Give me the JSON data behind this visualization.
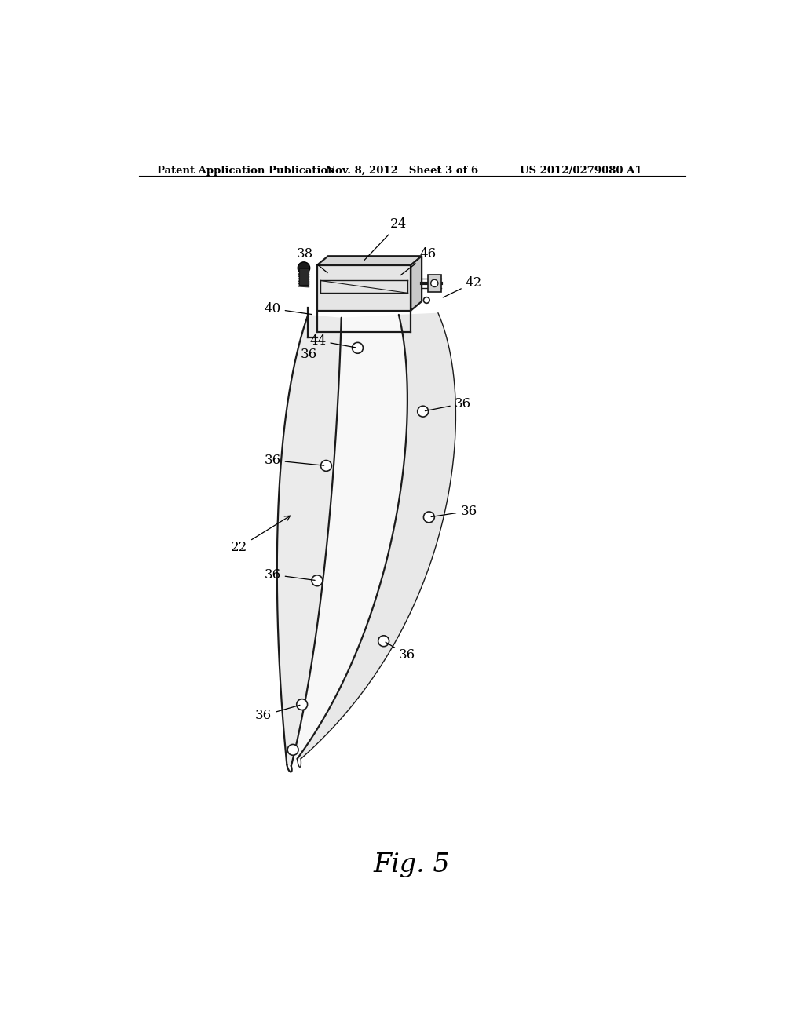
{
  "bg_color": "#ffffff",
  "header_left": "Patent Application Publication",
  "header_mid": "Nov. 8, 2012   Sheet 3 of 6",
  "header_right": "US 2012/0279080 A1",
  "fig_label": "Fig. 5",
  "line_color": "#1a1a1a",
  "lw_main": 1.6,
  "lw_thin": 1.0,
  "blade_color": "#f5f5f5",
  "bracket_color": "#e0e0e0",
  "bracket_dark": "#c0c0c0"
}
